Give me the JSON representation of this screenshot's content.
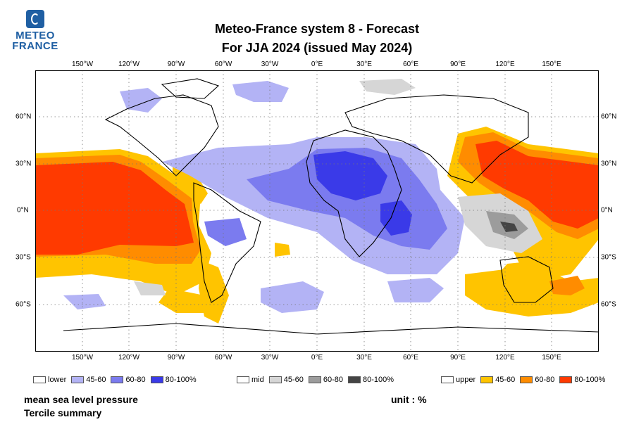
{
  "logo": {
    "line1": "METEO",
    "line2": "FRANCE"
  },
  "title": {
    "line1": "Meteo-France system 8  -  Forecast",
    "line2": "For JJA 2024      (issued May 2024)"
  },
  "lon_labels": [
    "150°W",
    "120°W",
    "90°W",
    "60°W",
    "30°W",
    "0°E",
    "30°E",
    "60°E",
    "90°E",
    "120°E",
    "150°E"
  ],
  "lat_labels": [
    "60°N",
    "30°N",
    "0°N",
    "30°S",
    "60°S"
  ],
  "legend": {
    "lower": {
      "label": "lower",
      "items": [
        {
          "label": "45-60",
          "color": "#b3b3f5"
        },
        {
          "label": "60-80",
          "color": "#7b7bef"
        },
        {
          "label": "80-100%",
          "color": "#3a3ae8"
        }
      ]
    },
    "mid": {
      "label": "mid",
      "items": [
        {
          "label": "45-60",
          "color": "#d6d6d6"
        },
        {
          "label": "60-80",
          "color": "#9c9c9c"
        },
        {
          "label": "80-100%",
          "color": "#444444"
        }
      ]
    },
    "upper": {
      "label": "upper",
      "items": [
        {
          "label": "45-60",
          "color": "#ffc400"
        },
        {
          "label": "60-80",
          "color": "#ff8c00"
        },
        {
          "label": "80-100%",
          "color": "#ff3a00"
        }
      ]
    }
  },
  "footer": {
    "variable": "mean sea level pressure",
    "unit": "unit : %",
    "subtitle": "Tercile summary"
  }
}
